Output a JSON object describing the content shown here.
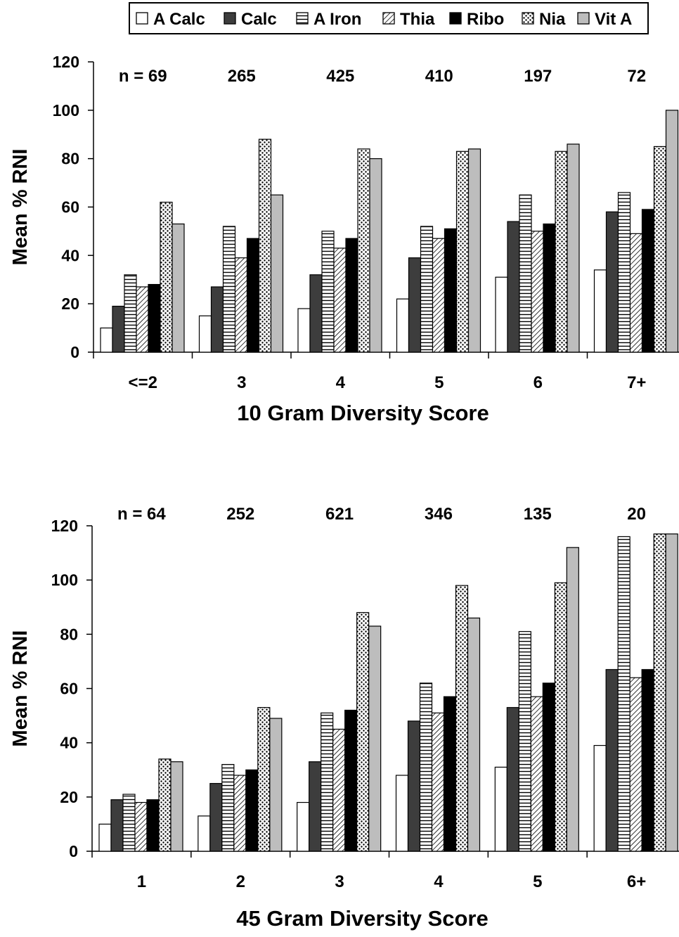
{
  "legend": {
    "items": [
      {
        "label": "A Calc",
        "pattern": "white"
      },
      {
        "label": "Calc",
        "pattern": "darkgray"
      },
      {
        "label": "A Iron",
        "pattern": "horizontal-stripes"
      },
      {
        "label": "Thia",
        "pattern": "diagonal-stripes"
      },
      {
        "label": "Ribo",
        "pattern": "black"
      },
      {
        "label": "Nia",
        "pattern": "dots"
      },
      {
        "label": "Vit A",
        "pattern": "lightgray"
      }
    ]
  },
  "colors": {
    "calc": "#3d3d3d",
    "ribo": "#000000",
    "vit_a": "#bdbdbd",
    "outline": "#000000"
  },
  "chart_data": [
    {
      "type": "bar",
      "categories": [
        "<=2",
        "3",
        "4",
        "5",
        "6",
        "7+"
      ],
      "n_labels": [
        "n = 69",
        "265",
        "425",
        "410",
        "197",
        "72"
      ],
      "xlabel": "10 Gram Diversity Score",
      "ylabel": "Mean % RNI",
      "ylim": [
        0,
        120
      ],
      "yticks": [
        0,
        20,
        40,
        60,
        80,
        100,
        120
      ],
      "series": [
        {
          "name": "A Calc",
          "values": [
            10,
            15,
            18,
            22,
            31,
            34
          ]
        },
        {
          "name": "Calc",
          "values": [
            19,
            27,
            32,
            39,
            54,
            58
          ]
        },
        {
          "name": "A Iron",
          "values": [
            32,
            52,
            50,
            52,
            65,
            66
          ]
        },
        {
          "name": "Thia",
          "values": [
            27,
            39,
            43,
            47,
            50,
            49
          ]
        },
        {
          "name": "Ribo",
          "values": [
            28,
            47,
            47,
            51,
            53,
            59
          ]
        },
        {
          "name": "Nia",
          "values": [
            62,
            88,
            84,
            83,
            83,
            85
          ]
        },
        {
          "name": "Vit A",
          "values": [
            53,
            65,
            80,
            84,
            86,
            100
          ]
        }
      ]
    },
    {
      "type": "bar",
      "categories": [
        "1",
        "2",
        "3",
        "4",
        "5",
        "6+"
      ],
      "n_labels": [
        "n = 64",
        "252",
        "621",
        "346",
        "135",
        "20"
      ],
      "xlabel": "45 Gram Diversity Score",
      "ylabel": "Mean % RNI",
      "ylim": [
        0,
        120
      ],
      "yticks": [
        0,
        20,
        40,
        60,
        80,
        100,
        120
      ],
      "series": [
        {
          "name": "A Calc",
          "values": [
            10,
            13,
            18,
            28,
            31,
            39
          ]
        },
        {
          "name": "Calc",
          "values": [
            19,
            25,
            33,
            48,
            53,
            67
          ]
        },
        {
          "name": "A Iron",
          "values": [
            21,
            32,
            51,
            62,
            81,
            116
          ]
        },
        {
          "name": "Thia",
          "values": [
            18,
            28,
            45,
            51,
            57,
            64
          ]
        },
        {
          "name": "Ribo",
          "values": [
            19,
            30,
            52,
            57,
            62,
            67
          ]
        },
        {
          "name": "Nia",
          "values": [
            34,
            53,
            88,
            98,
            99,
            117
          ]
        },
        {
          "name": "Vit A",
          "values": [
            33,
            49,
            83,
            86,
            112,
            117
          ]
        }
      ]
    }
  ]
}
